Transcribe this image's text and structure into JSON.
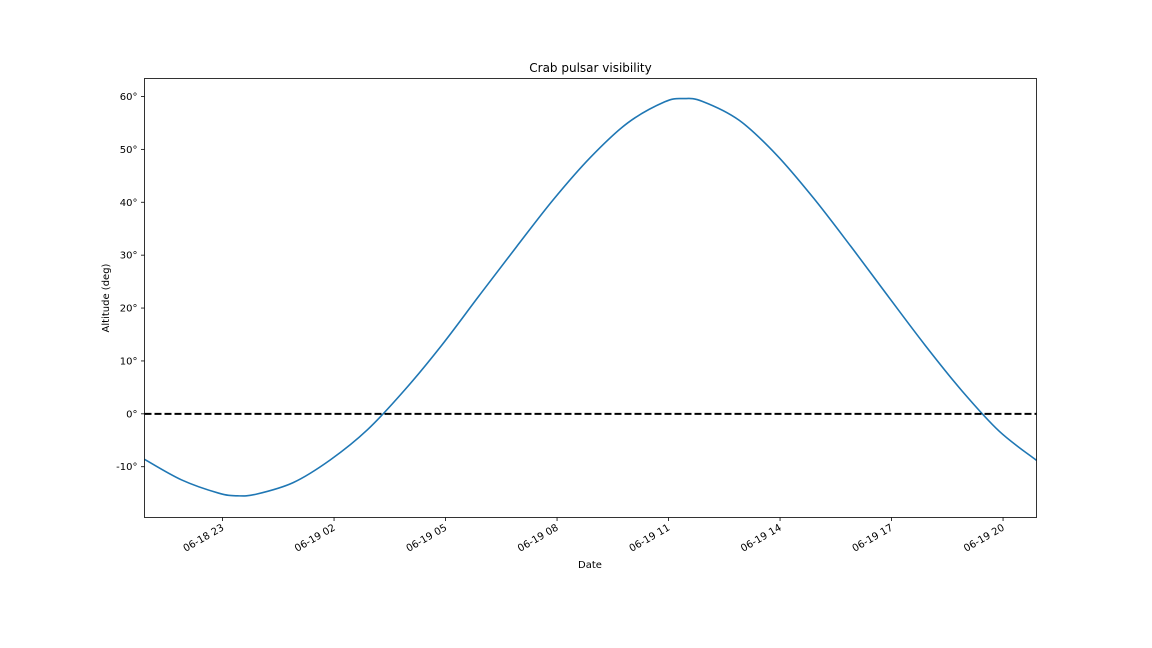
{
  "chart_data": {
    "type": "line",
    "title": "Crab pulsar visibility",
    "xlabel": "Date",
    "ylabel": "Altitude (deg)",
    "x_axis_type": "datetime",
    "xlim": [
      "2022-06-18 20:54",
      "2022-06-19 20:54"
    ],
    "ylim": [
      -19.6,
      63.4
    ],
    "xticks": [
      {
        "value": "2022-06-18 23:00",
        "label": "06-18 23"
      },
      {
        "value": "2022-06-19 02:00",
        "label": "06-19 02"
      },
      {
        "value": "2022-06-19 05:00",
        "label": "06-19 05"
      },
      {
        "value": "2022-06-19 08:00",
        "label": "06-19 08"
      },
      {
        "value": "2022-06-19 11:00",
        "label": "06-19 11"
      },
      {
        "value": "2022-06-19 14:00",
        "label": "06-19 14"
      },
      {
        "value": "2022-06-19 17:00",
        "label": "06-19 17"
      },
      {
        "value": "2022-06-19 20:00",
        "label": "06-19 20"
      }
    ],
    "yticks": [
      {
        "value": -10,
        "label": "-10°"
      },
      {
        "value": 0,
        "label": "0°"
      },
      {
        "value": 10,
        "label": "10°"
      },
      {
        "value": 20,
        "label": "20°"
      },
      {
        "value": 30,
        "label": "30°"
      },
      {
        "value": 40,
        "label": "40°"
      },
      {
        "value": 50,
        "label": "50°"
      },
      {
        "value": 60,
        "label": "60°"
      }
    ],
    "grid": false,
    "series": [
      {
        "color": "#1f77b4",
        "style": "solid",
        "points": [
          {
            "x": "2022-06-18 20:54",
            "y": -8.6
          },
          {
            "x": "2022-06-18 21:54",
            "y": -12.5
          },
          {
            "x": "2022-06-18 22:54",
            "y": -15.0
          },
          {
            "x": "2022-06-18 23:24",
            "y": -15.5
          },
          {
            "x": "2022-06-18 23:54",
            "y": -15.2
          },
          {
            "x": "2022-06-19 00:54",
            "y": -13.0
          },
          {
            "x": "2022-06-19 01:54",
            "y": -8.7
          },
          {
            "x": "2022-06-19 02:54",
            "y": -3.0
          },
          {
            "x": "2022-06-19 03:54",
            "y": 4.5
          },
          {
            "x": "2022-06-19 04:54",
            "y": 13.0
          },
          {
            "x": "2022-06-19 05:54",
            "y": 22.3
          },
          {
            "x": "2022-06-19 06:54",
            "y": 31.5
          },
          {
            "x": "2022-06-19 07:54",
            "y": 40.5
          },
          {
            "x": "2022-06-19 08:54",
            "y": 48.5
          },
          {
            "x": "2022-06-19 09:54",
            "y": 55.0
          },
          {
            "x": "2022-06-19 10:54",
            "y": 59.0
          },
          {
            "x": "2022-06-19 11:24",
            "y": 59.6
          },
          {
            "x": "2022-06-19 11:54",
            "y": 59.1
          },
          {
            "x": "2022-06-19 12:54",
            "y": 55.5
          },
          {
            "x": "2022-06-19 13:54",
            "y": 49.0
          },
          {
            "x": "2022-06-19 14:54",
            "y": 40.8
          },
          {
            "x": "2022-06-19 15:54",
            "y": 31.7
          },
          {
            "x": "2022-06-19 16:54",
            "y": 22.3
          },
          {
            "x": "2022-06-19 17:54",
            "y": 13.0
          },
          {
            "x": "2022-06-19 18:54",
            "y": 4.3
          },
          {
            "x": "2022-06-19 19:54",
            "y": -3.3
          },
          {
            "x": "2022-06-19 20:54",
            "y": -8.8
          }
        ]
      },
      {
        "color": "#000000",
        "style": "dashed",
        "points": [
          {
            "x": "2022-06-18 20:54",
            "y": 0
          },
          {
            "x": "2022-06-19 20:54",
            "y": 0
          }
        ]
      }
    ]
  }
}
